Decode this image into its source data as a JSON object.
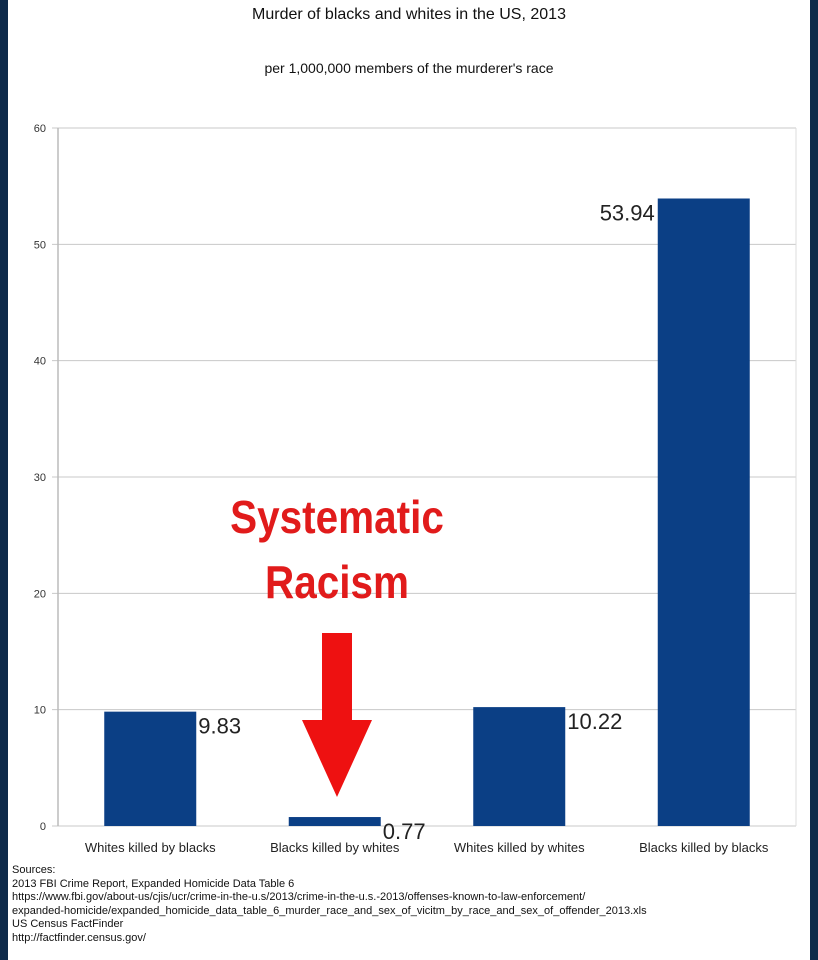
{
  "chart_data": {
    "type": "bar",
    "title": "Murder of blacks and whites in the US, 2013",
    "subtitle": "per 1,000,000 members of the murderer's race",
    "categories": [
      "Whites killed by blacks",
      "Blacks killed by whites",
      "Whites killed by whites",
      "Blacks killed by blacks"
    ],
    "values": [
      9.83,
      0.77,
      10.22,
      53.94
    ],
    "data_labels": [
      "9.83",
      "0.77",
      "10.22",
      "53.94"
    ],
    "ylim": [
      0,
      60
    ],
    "yticks": [
      0,
      10,
      20,
      30,
      40,
      50,
      60
    ],
    "grid": true,
    "bar_color": "#0b3f85",
    "annotation": {
      "lines": [
        "Systematic",
        "Racism"
      ],
      "color": "#e11b1b",
      "arrow_target": "Blacks killed by whites"
    }
  },
  "sources": {
    "heading": "Sources:",
    "lines": [
      "2013 FBI Crime Report, Expanded Homicide Data Table 6",
      "https://www.fbi.gov/about-us/cjis/ucr/crime-in-the-u.s/2013/crime-in-the-u.s.-2013/offenses-known-to-law-enforcement/",
      "expanded-homicide/expanded_homicide_data_table_6_murder_race_and_sex_of_vicitm_by_race_and_sex_of_offender_2013.xls",
      "US Census FactFinder",
      "http://factfinder.census.gov/"
    ]
  }
}
